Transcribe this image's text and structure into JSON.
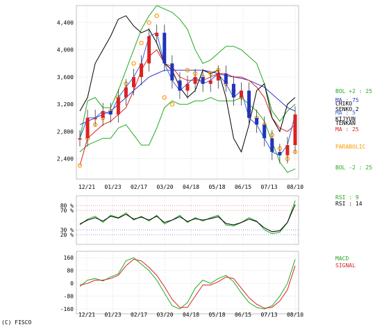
{
  "chart_data": {
    "type": "line",
    "copyright": "(C) FISCO",
    "x_ticks": [
      "12/21",
      "01/23",
      "02/17",
      "03/20",
      "04/18",
      "05/18",
      "06/15",
      "07/13",
      "08/10"
    ],
    "price_panel": {
      "ylim": [
        2100,
        4650
      ],
      "y_ticks": [
        "4,400",
        "4,000",
        "3,600",
        "3,200",
        "2,800",
        "2,400"
      ],
      "y_tick_values": [
        4400,
        4000,
        3600,
        3200,
        2800,
        2400
      ],
      "legend": [
        "BOL +2 : 25",
        "MA : 75",
        "CHIKO",
        "SENKO 2",
        "MA : 5",
        "KIJYUN",
        "TENKAN",
        "MA : 25",
        "PARABOLIC",
        "BOL -2 : 25"
      ],
      "series": [
        {
          "name": "BOL +2 : 25",
          "color": "#22aa22",
          "values": [
            2700,
            3250,
            3300,
            3150,
            3150,
            3400,
            3700,
            4000,
            4300,
            4500,
            4650,
            4600,
            4550,
            4450,
            4300,
            4000,
            3800,
            3850,
            3950,
            4050,
            4050,
            4000,
            3900,
            3800,
            3500,
            3100,
            2950,
            3100,
            3200
          ]
        },
        {
          "name": "BOL -2 : 25",
          "color": "#22aa22",
          "values": [
            2500,
            2600,
            2650,
            2700,
            2700,
            2850,
            2900,
            2750,
            2600,
            2600,
            2850,
            3150,
            3250,
            3200,
            3200,
            3250,
            3250,
            3300,
            3250,
            3250,
            3250,
            3300,
            3200,
            3100,
            2950,
            2650,
            2350,
            2200,
            2250
          ]
        },
        {
          "name": "MA : 75",
          "color": "#3333cc",
          "values": [
            2900,
            2950,
            3000,
            3050,
            3100,
            3200,
            3300,
            3400,
            3500,
            3600,
            3650,
            3700,
            3700,
            3700,
            3700,
            3700,
            3700,
            3680,
            3650,
            3620,
            3600,
            3580,
            3550,
            3500,
            3450,
            3350,
            3250,
            3150,
            3100
          ]
        },
        {
          "name": "MA : 25",
          "color": "#dd2222",
          "values": [
            2300,
            2700,
            2800,
            2900,
            2950,
            3050,
            3150,
            3400,
            3700,
            3900,
            4000,
            3800,
            3750,
            3600,
            3550,
            3550,
            3550,
            3600,
            3650,
            3650,
            3600,
            3600,
            3550,
            3450,
            3300,
            3000,
            2850,
            2800,
            2900
          ]
        },
        {
          "name": "CHIKO",
          "color": "#000000",
          "values": [
            3100,
            3300,
            3800,
            4000,
            4200,
            4450,
            4500,
            4350,
            4250,
            4300,
            4100,
            3800,
            3700,
            3450,
            3300,
            3400,
            3700,
            3650,
            3700,
            3300,
            2700,
            2500,
            2900,
            3400,
            3500,
            3000,
            2800,
            3200,
            3300
          ]
        },
        {
          "name": "PARABOLIC",
          "color": "#ff9900",
          "values": [
            2300,
            2700,
            2900,
            3000,
            3100,
            3300,
            3500,
            3800,
            4100,
            4400,
            4500,
            3300,
            3200,
            3500,
            3700,
            3650,
            3600,
            3650,
            3700,
            3500,
            3400,
            3300,
            3100,
            3000,
            2900,
            2750,
            2550,
            2400,
            2500
          ]
        },
        {
          "name": "MA : 5",
          "color": "#3366dd",
          "values": [
            2700,
            3000,
            3000,
            3100,
            3050,
            3300,
            3450,
            3600,
            3800,
            4200,
            4250,
            3800,
            3550,
            3400,
            3500,
            3600,
            3500,
            3550,
            3650,
            3500,
            3300,
            3400,
            3000,
            2900,
            2700,
            2500,
            2450,
            2600,
            3050
          ]
        }
      ]
    },
    "rsi_panel": {
      "ylim": [
        0,
        100
      ],
      "y_ticks": [
        "80 %",
        "70 %",
        "30 %",
        "20 %"
      ],
      "y_tick_values": [
        80,
        70,
        30,
        20
      ],
      "legend": [
        "RSI : 9",
        "RSI : 14"
      ],
      "series": [
        {
          "name": "RSI : 9",
          "color": "#22aa22",
          "values": [
            40,
            52,
            58,
            45,
            60,
            55,
            65,
            50,
            58,
            48,
            60,
            42,
            50,
            60,
            45,
            55,
            48,
            55,
            60,
            40,
            38,
            45,
            55,
            48,
            30,
            22,
            25,
            45,
            90
          ]
        },
        {
          "name": "RSI : 14",
          "color": "#000000",
          "values": [
            42,
            50,
            55,
            48,
            58,
            54,
            62,
            52,
            56,
            50,
            58,
            45,
            50,
            57,
            47,
            53,
            50,
            53,
            57,
            43,
            40,
            45,
            52,
            47,
            34,
            26,
            28,
            45,
            82
          ]
        }
      ]
    },
    "macd_panel": {
      "ylim": [
        -190,
        200
      ],
      "y_ticks": [
        "160",
        "80",
        "0",
        "-80",
        "-160"
      ],
      "y_tick_values": [
        160,
        80,
        0,
        -80,
        -160
      ],
      "legend": [
        "MACD",
        "SIGNAL"
      ],
      "series": [
        {
          "name": "MACD",
          "color": "#22aa22",
          "values": [
            -20,
            20,
            30,
            15,
            40,
            60,
            140,
            160,
            120,
            80,
            20,
            -60,
            -140,
            -160,
            -120,
            -30,
            20,
            0,
            30,
            50,
            10,
            -60,
            -120,
            -150,
            -160,
            -140,
            -80,
            0,
            150
          ]
        },
        {
          "name": "SIGNAL",
          "color": "#dd2222",
          "values": [
            -10,
            0,
            20,
            20,
            30,
            50,
            110,
            150,
            140,
            100,
            50,
            -20,
            -100,
            -150,
            -150,
            -80,
            -10,
            -10,
            10,
            40,
            30,
            -30,
            -90,
            -130,
            -155,
            -150,
            -110,
            -40,
            110
          ]
        }
      ]
    }
  }
}
